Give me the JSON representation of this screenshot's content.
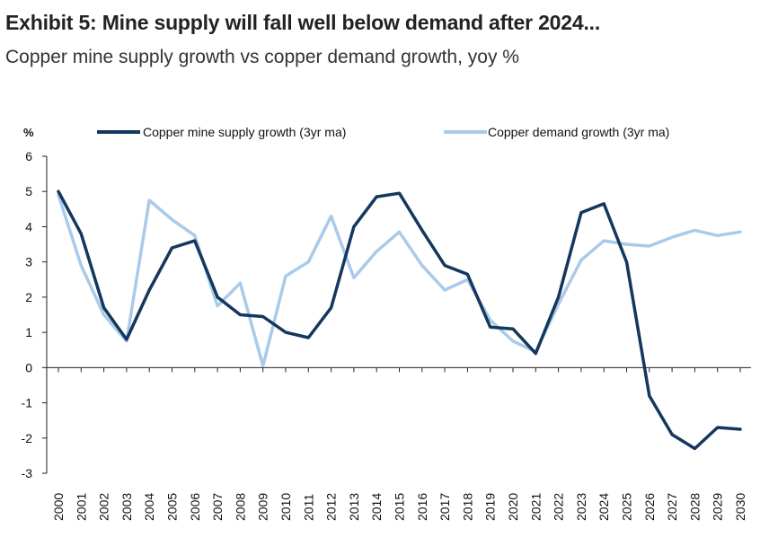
{
  "title": "Exhibit 5: Mine supply will fall well below demand after 2024...",
  "subtitle": "Copper mine supply growth vs copper demand growth, yoy %",
  "chart_data": {
    "type": "line",
    "ylabel": "%",
    "ylim": [
      -3,
      6
    ],
    "yticks": [
      "6",
      "5",
      "4",
      "3",
      "2",
      "1",
      "0",
      "-1",
      "-2",
      "-3"
    ],
    "ytick_values": [
      6,
      5,
      4,
      3,
      2,
      1,
      0,
      -1,
      -2,
      -3
    ],
    "grid": false,
    "legend_position": "top",
    "categories": [
      "2000",
      "2001",
      "2002",
      "2003",
      "2004",
      "2005",
      "2006",
      "2007",
      "2008",
      "2009",
      "2010",
      "2011",
      "2012",
      "2013",
      "2014",
      "2015",
      "2016",
      "2017",
      "2018",
      "2019",
      "2020",
      "2021",
      "2022",
      "2023",
      "2024",
      "2025",
      "2026",
      "2027",
      "2028",
      "2029",
      "2030"
    ],
    "series": [
      {
        "name": "Copper mine supply growth (3yr ma)",
        "color": "#14375e",
        "values": [
          5.0,
          3.8,
          1.7,
          0.8,
          2.2,
          3.4,
          3.6,
          2.0,
          1.5,
          1.45,
          1.0,
          0.85,
          1.7,
          4.0,
          4.85,
          4.95,
          3.9,
          2.9,
          2.65,
          1.15,
          1.1,
          0.4,
          2.0,
          4.4,
          4.65,
          3.0,
          -0.8,
          -1.9,
          -2.3,
          -1.7,
          -1.75
        ]
      },
      {
        "name": "Copper demand growth (3yr ma)",
        "color": "#a9cbe9",
        "values": [
          4.9,
          2.9,
          1.5,
          0.75,
          4.75,
          4.2,
          3.75,
          1.75,
          2.4,
          0.05,
          2.6,
          3.0,
          4.3,
          2.55,
          3.3,
          3.85,
          2.9,
          2.2,
          2.5,
          1.35,
          0.75,
          0.45,
          1.8,
          3.05,
          3.6,
          3.5,
          3.45,
          3.7,
          3.9,
          3.75,
          3.85
        ]
      }
    ]
  }
}
